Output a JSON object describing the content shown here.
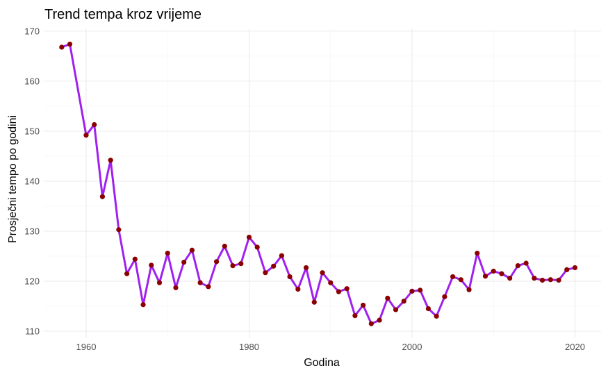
{
  "chart_data": {
    "type": "line",
    "title": "Trend tempa kroz vrijeme",
    "xlabel": "Godina",
    "ylabel": "Prosječni tempo po godini",
    "xlim": [
      1954.8,
      2023.2
    ],
    "ylim": [
      108.6,
      170.4
    ],
    "xticks": [
      1960,
      1980,
      2000,
      2020
    ],
    "yticks": [
      110,
      120,
      130,
      140,
      150,
      160,
      170
    ],
    "grid": true,
    "line_color": "#A020F0",
    "point_color": "#8B0000",
    "series": [
      {
        "name": "Prosječni tempo",
        "x": [
          1957,
          1958,
          1960,
          1961,
          1962,
          1963,
          1964,
          1965,
          1966,
          1967,
          1968,
          1969,
          1970,
          1971,
          1972,
          1973,
          1974,
          1975,
          1976,
          1977,
          1978,
          1979,
          1980,
          1981,
          1982,
          1983,
          1984,
          1985,
          1986,
          1987,
          1988,
          1989,
          1990,
          1991,
          1992,
          1993,
          1994,
          1995,
          1996,
          1997,
          1998,
          1999,
          2000,
          2001,
          2002,
          2003,
          2004,
          2005,
          2006,
          2007,
          2008,
          2009,
          2010,
          2011,
          2012,
          2013,
          2014,
          2015,
          2016,
          2017,
          2018,
          2019,
          2020
        ],
        "y": [
          166.8,
          167.4,
          149.2,
          151.3,
          136.9,
          144.2,
          130.3,
          121.5,
          124.4,
          115.3,
          123.2,
          119.7,
          125.6,
          118.7,
          123.8,
          126.2,
          119.7,
          118.9,
          123.9,
          127.0,
          123.1,
          123.5,
          128.8,
          126.8,
          121.7,
          123.0,
          125.1,
          120.9,
          118.4,
          122.7,
          115.8,
          121.7,
          119.7,
          117.9,
          118.5,
          113.1,
          115.2,
          111.5,
          112.2,
          116.6,
          114.3,
          116.0,
          118.0,
          118.2,
          114.5,
          113.0,
          116.9,
          120.9,
          120.3,
          118.3,
          125.6,
          121.0,
          122.0,
          121.5,
          120.6,
          123.1,
          123.6,
          120.6,
          120.2,
          120.3,
          120.2,
          122.3,
          122.7
        ]
      }
    ]
  }
}
